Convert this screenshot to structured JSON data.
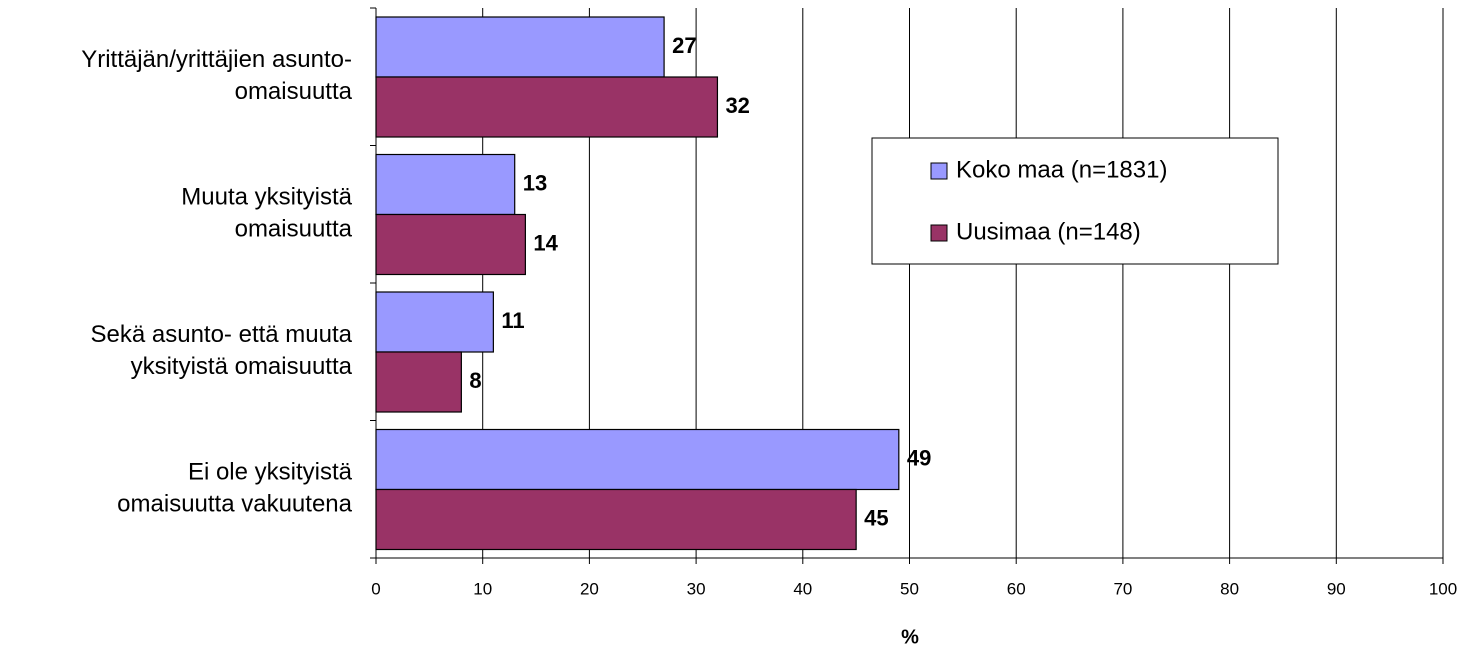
{
  "chart_data": {
    "type": "hbar",
    "categories": [
      [
        "Yrittäjän/yrittäjien asunto-",
        "omaisuutta"
      ],
      [
        "Muuta yksityistä",
        "omaisuutta"
      ],
      [
        "Sekä asunto- että muuta",
        "yksityistä omaisuutta"
      ],
      [
        "Ei ole yksityistä",
        "omaisuutta vakuutena"
      ]
    ],
    "series": [
      {
        "name": "Koko maa (n=1831)",
        "color": "#9999ff",
        "values": [
          27,
          13,
          11,
          49
        ]
      },
      {
        "name": "Uusimaa (n=148)",
        "color": "#993366",
        "values": [
          32,
          14,
          8,
          45
        ]
      }
    ],
    "xlabel": "%",
    "xlim": [
      0,
      100
    ],
    "xticks": [
      0,
      10,
      20,
      30,
      40,
      50,
      60,
      70,
      80,
      90,
      100
    ],
    "grid": true
  }
}
